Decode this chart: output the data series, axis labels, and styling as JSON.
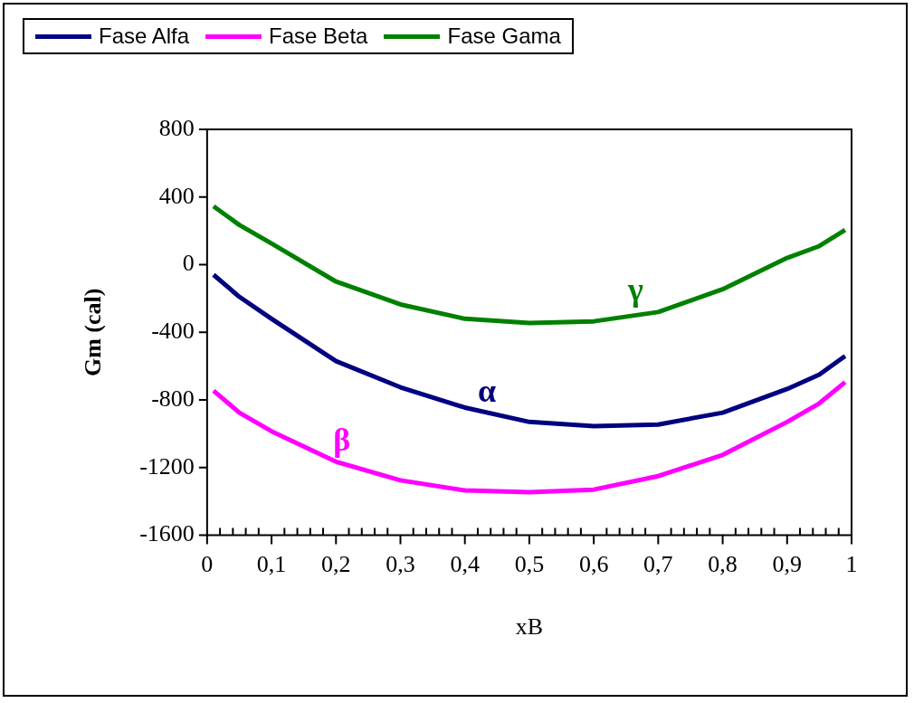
{
  "chart_data": {
    "type": "line",
    "xlabel": "xB",
    "ylabel": "Gm (cal)",
    "legend": "top left",
    "grid": false,
    "marker": "none",
    "line_style": "solid",
    "xlim": [
      0,
      1
    ],
    "ylim": [
      -1600,
      800
    ],
    "xticks": [
      {
        "value": 0,
        "label": "0"
      },
      {
        "value": 0.02,
        "label": null
      },
      {
        "value": 0.04,
        "label": null
      },
      {
        "value": 0.06,
        "label": null
      },
      {
        "value": 0.08,
        "label": null
      },
      {
        "value": 0.1,
        "label": "0,1"
      },
      {
        "value": 0.12,
        "label": null
      },
      {
        "value": 0.14,
        "label": null
      },
      {
        "value": 0.16,
        "label": null
      },
      {
        "value": 0.18,
        "label": null
      },
      {
        "value": 0.2,
        "label": "0,2"
      },
      {
        "value": 0.22,
        "label": null
      },
      {
        "value": 0.24,
        "label": null
      },
      {
        "value": 0.26,
        "label": null
      },
      {
        "value": 0.28,
        "label": null
      },
      {
        "value": 0.3,
        "label": "0,3"
      },
      {
        "value": 0.32,
        "label": null
      },
      {
        "value": 0.34,
        "label": null
      },
      {
        "value": 0.36,
        "label": null
      },
      {
        "value": 0.38,
        "label": null
      },
      {
        "value": 0.4,
        "label": "0,4"
      },
      {
        "value": 0.42,
        "label": null
      },
      {
        "value": 0.44,
        "label": null
      },
      {
        "value": 0.46,
        "label": null
      },
      {
        "value": 0.48,
        "label": null
      },
      {
        "value": 0.5,
        "label": "0,5"
      },
      {
        "value": 0.52,
        "label": null
      },
      {
        "value": 0.54,
        "label": null
      },
      {
        "value": 0.56,
        "label": null
      },
      {
        "value": 0.58,
        "label": null
      },
      {
        "value": 0.6,
        "label": "0,6"
      },
      {
        "value": 0.62,
        "label": null
      },
      {
        "value": 0.64,
        "label": null
      },
      {
        "value": 0.66,
        "label": null
      },
      {
        "value": 0.68,
        "label": null
      },
      {
        "value": 0.7,
        "label": "0,7"
      },
      {
        "value": 0.72,
        "label": null
      },
      {
        "value": 0.74,
        "label": null
      },
      {
        "value": 0.76,
        "label": null
      },
      {
        "value": 0.78,
        "label": null
      },
      {
        "value": 0.8,
        "label": "0,8"
      },
      {
        "value": 0.82,
        "label": null
      },
      {
        "value": 0.84,
        "label": null
      },
      {
        "value": 0.86,
        "label": null
      },
      {
        "value": 0.88,
        "label": null
      },
      {
        "value": 0.9,
        "label": "0,9"
      },
      {
        "value": 0.92,
        "label": null
      },
      {
        "value": 0.94,
        "label": null
      },
      {
        "value": 0.96,
        "label": null
      },
      {
        "value": 0.98,
        "label": null
      },
      {
        "value": 1,
        "label": "1"
      }
    ],
    "yticks": [
      -1600,
      -1200,
      -800,
      -400,
      0,
      400,
      800
    ],
    "x": [
      0.01,
      0.05,
      0.1,
      0.2,
      0.3,
      0.4,
      0.5,
      0.6,
      0.7,
      0.8,
      0.9,
      0.95,
      0.99
    ],
    "series": [
      {
        "name": "Fase Alfa",
        "color": "#000080",
        "values": [
          -60,
          -190,
          -320,
          -570,
          -725,
          -845,
          -930,
          -955,
          -945,
          -875,
          -735,
          -650,
          -540
        ]
      },
      {
        "name": "Fase Beta",
        "color": "#ff00ff",
        "values": [
          -745,
          -875,
          -985,
          -1165,
          -1275,
          -1335,
          -1345,
          -1330,
          -1250,
          -1125,
          -930,
          -820,
          -695
        ]
      },
      {
        "name": "Fase Gama",
        "color": "#008000",
        "values": [
          345,
          235,
          125,
          -100,
          -235,
          -320,
          -345,
          -335,
          -280,
          -145,
          40,
          110,
          205
        ]
      }
    ],
    "annotations": [
      "α",
      "β",
      "γ"
    ]
  }
}
